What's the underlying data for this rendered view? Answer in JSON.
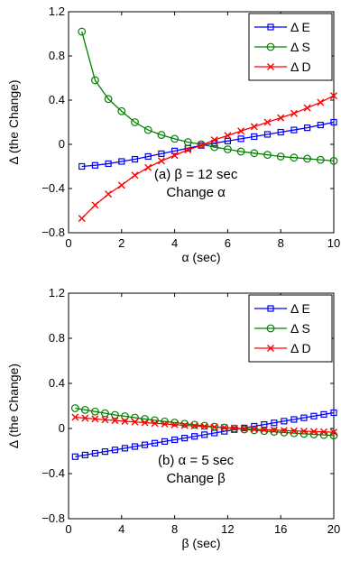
{
  "chart_data": [
    {
      "type": "line",
      "xlabel": "α (sec)",
      "ylabel": "Δ (the Change)",
      "xlim": [
        0,
        10
      ],
      "ylim": [
        -0.8,
        1.2
      ],
      "xticks": [
        0,
        2,
        4,
        6,
        8,
        10
      ],
      "xtick_labels": [
        "0",
        "2",
        "4",
        "6",
        "8",
        "10"
      ],
      "yticks": [
        -0.8,
        -0.4,
        0,
        0.4,
        0.8,
        1.2
      ],
      "ytick_labels": [
        "−0.8",
        "−0.4",
        "0",
        "0.4",
        "0.8",
        "1.2"
      ],
      "annotation": [
        "(a) β = 12 sec",
        "Change α"
      ],
      "legend_position": "top-right",
      "grid": false,
      "x": [
        0.5,
        1.0,
        1.5,
        2.0,
        2.5,
        3.0,
        3.5,
        4.0,
        4.5,
        5.0,
        5.5,
        6.0,
        6.5,
        7.0,
        7.5,
        8.0,
        8.5,
        9.0,
        9.5,
        10.0
      ],
      "series": [
        {
          "name": "Δ E",
          "color": "#0000ff",
          "marker": "square",
          "values": [
            -0.2,
            -0.19,
            -0.175,
            -0.155,
            -0.135,
            -0.11,
            -0.085,
            -0.06,
            -0.035,
            -0.01,
            0.01,
            0.03,
            0.05,
            0.07,
            0.09,
            0.11,
            0.13,
            0.15,
            0.175,
            0.2
          ]
        },
        {
          "name": "Δ S",
          "color": "#008000",
          "marker": "circle",
          "values": [
            1.02,
            0.58,
            0.41,
            0.3,
            0.2,
            0.13,
            0.085,
            0.05,
            0.02,
            0.0,
            -0.025,
            -0.045,
            -0.065,
            -0.08,
            -0.095,
            -0.11,
            -0.12,
            -0.13,
            -0.14,
            -0.15
          ]
        },
        {
          "name": "Δ D",
          "color": "#ff0000",
          "marker": "x",
          "values": [
            -0.67,
            -0.55,
            -0.45,
            -0.37,
            -0.28,
            -0.21,
            -0.15,
            -0.1,
            -0.05,
            -0.01,
            0.04,
            0.08,
            0.12,
            0.16,
            0.2,
            0.24,
            0.28,
            0.33,
            0.38,
            0.44
          ]
        }
      ]
    },
    {
      "type": "line",
      "xlabel": "β (sec)",
      "ylabel": "Δ (the Change)",
      "xlim": [
        0,
        20
      ],
      "ylim": [
        -0.8,
        1.2
      ],
      "xticks": [
        0,
        4,
        8,
        12,
        16,
        20
      ],
      "xtick_labels": [
        "0",
        "4",
        "8",
        "12",
        "16",
        "20"
      ],
      "yticks": [
        -0.8,
        -0.4,
        0,
        0.4,
        0.8,
        1.2
      ],
      "ytick_labels": [
        "−0.8",
        "−0.4",
        "0",
        "0.4",
        "0.8",
        "1.2"
      ],
      "annotation": [
        "(b) α = 5 sec",
        "Change β"
      ],
      "legend_position": "top-right",
      "grid": false,
      "x": [
        0.5,
        1.25,
        2.0,
        2.75,
        3.5,
        4.25,
        5.0,
        5.75,
        6.5,
        7.25,
        8.0,
        8.75,
        9.5,
        10.25,
        11.0,
        11.75,
        12.5,
        13.25,
        14.0,
        14.75,
        15.5,
        16.25,
        17.0,
        17.75,
        18.5,
        19.25,
        20.0
      ],
      "series": [
        {
          "name": "Δ E",
          "color": "#0000ff",
          "marker": "square",
          "values": [
            -0.25,
            -0.235,
            -0.22,
            -0.205,
            -0.19,
            -0.175,
            -0.16,
            -0.145,
            -0.13,
            -0.115,
            -0.1,
            -0.085,
            -0.07,
            -0.055,
            -0.04,
            -0.025,
            -0.01,
            0.005,
            0.02,
            0.035,
            0.05,
            0.065,
            0.08,
            0.095,
            0.11,
            0.125,
            0.14
          ]
        },
        {
          "name": "Δ S",
          "color": "#008000",
          "marker": "circle",
          "values": [
            0.18,
            0.165,
            0.15,
            0.135,
            0.12,
            0.108,
            0.096,
            0.084,
            0.073,
            0.062,
            0.052,
            0.042,
            0.033,
            0.024,
            0.016,
            0.008,
            0.0,
            -0.008,
            -0.015,
            -0.022,
            -0.029,
            -0.035,
            -0.041,
            -0.047,
            -0.052,
            -0.057,
            -0.062
          ]
        },
        {
          "name": "Δ D",
          "color": "#ff0000",
          "marker": "x",
          "values": [
            0.1,
            0.092,
            0.085,
            0.078,
            0.071,
            0.064,
            0.058,
            0.052,
            0.046,
            0.04,
            0.034,
            0.028,
            0.023,
            0.018,
            0.013,
            0.008,
            0.003,
            -0.002,
            -0.006,
            -0.01,
            -0.014,
            -0.018,
            -0.021,
            -0.024,
            -0.027,
            -0.03,
            -0.033
          ]
        }
      ]
    }
  ]
}
